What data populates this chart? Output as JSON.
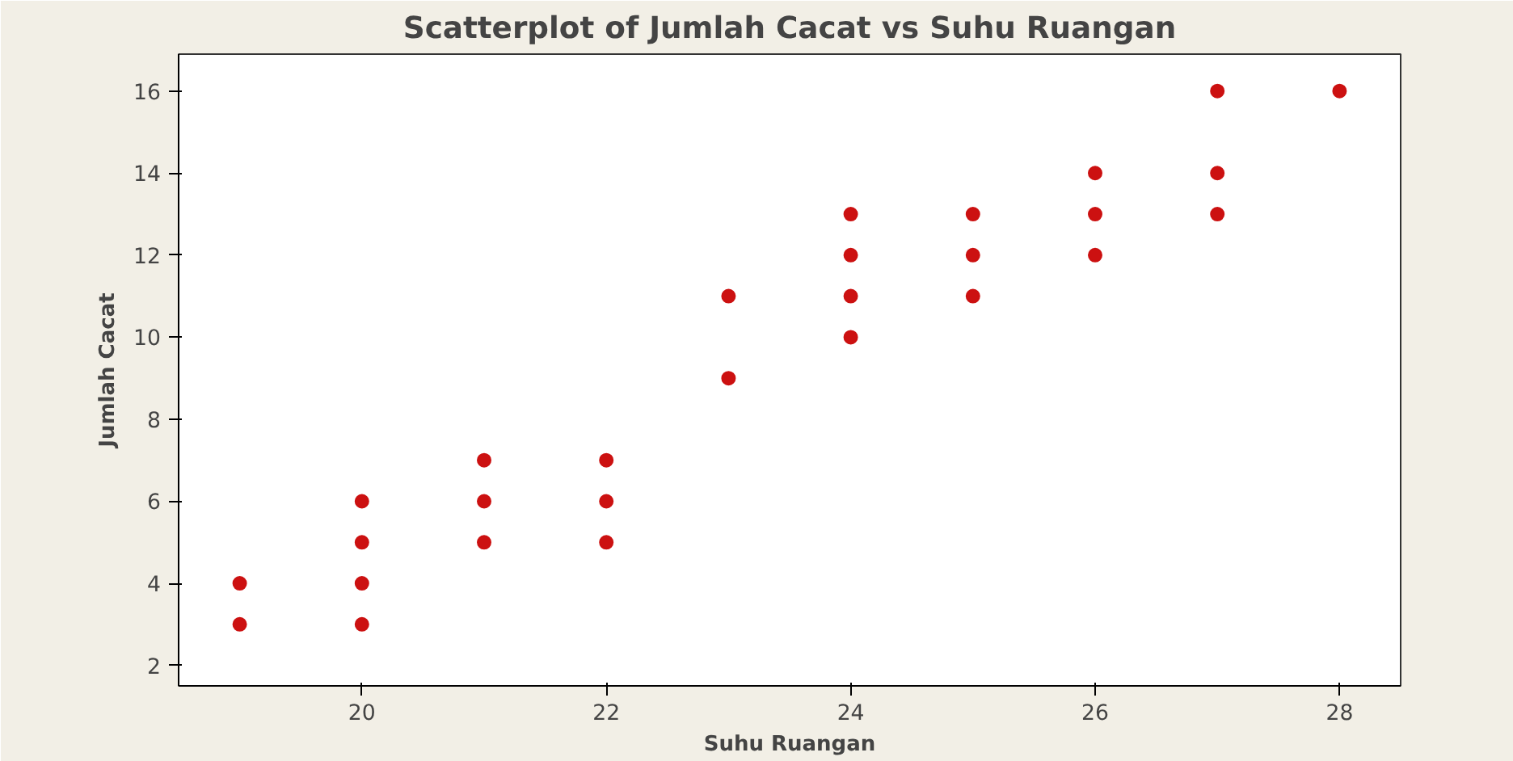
{
  "chart_data": {
    "type": "scatter",
    "title": "Scatterplot of Jumlah Cacat vs Suhu Ruangan",
    "xlabel": "Suhu Ruangan",
    "ylabel": "Jumlah Cacat",
    "x": [
      19,
      19,
      20,
      20,
      20,
      20,
      21,
      21,
      21,
      22,
      22,
      22,
      23,
      23,
      24,
      24,
      24,
      24,
      25,
      25,
      25,
      26,
      26,
      26,
      27,
      27,
      27,
      28
    ],
    "series": [
      {
        "color": "#cc1111",
        "values": [
          3,
          4,
          3,
          4,
          5,
          6,
          5,
          6,
          7,
          5,
          6,
          7,
          9,
          11,
          10,
          11,
          12,
          13,
          11,
          12,
          13,
          12,
          13,
          14,
          13,
          14,
          16,
          16
        ]
      }
    ],
    "xlim": [
      18.5,
      28.5
    ],
    "ylim": [
      1.5,
      16.9
    ],
    "xticks": [
      20,
      22,
      24,
      26,
      28
    ],
    "yticks": [
      2,
      4,
      6,
      8,
      10,
      12,
      14,
      16
    ],
    "grid": false,
    "marker": "circle"
  }
}
